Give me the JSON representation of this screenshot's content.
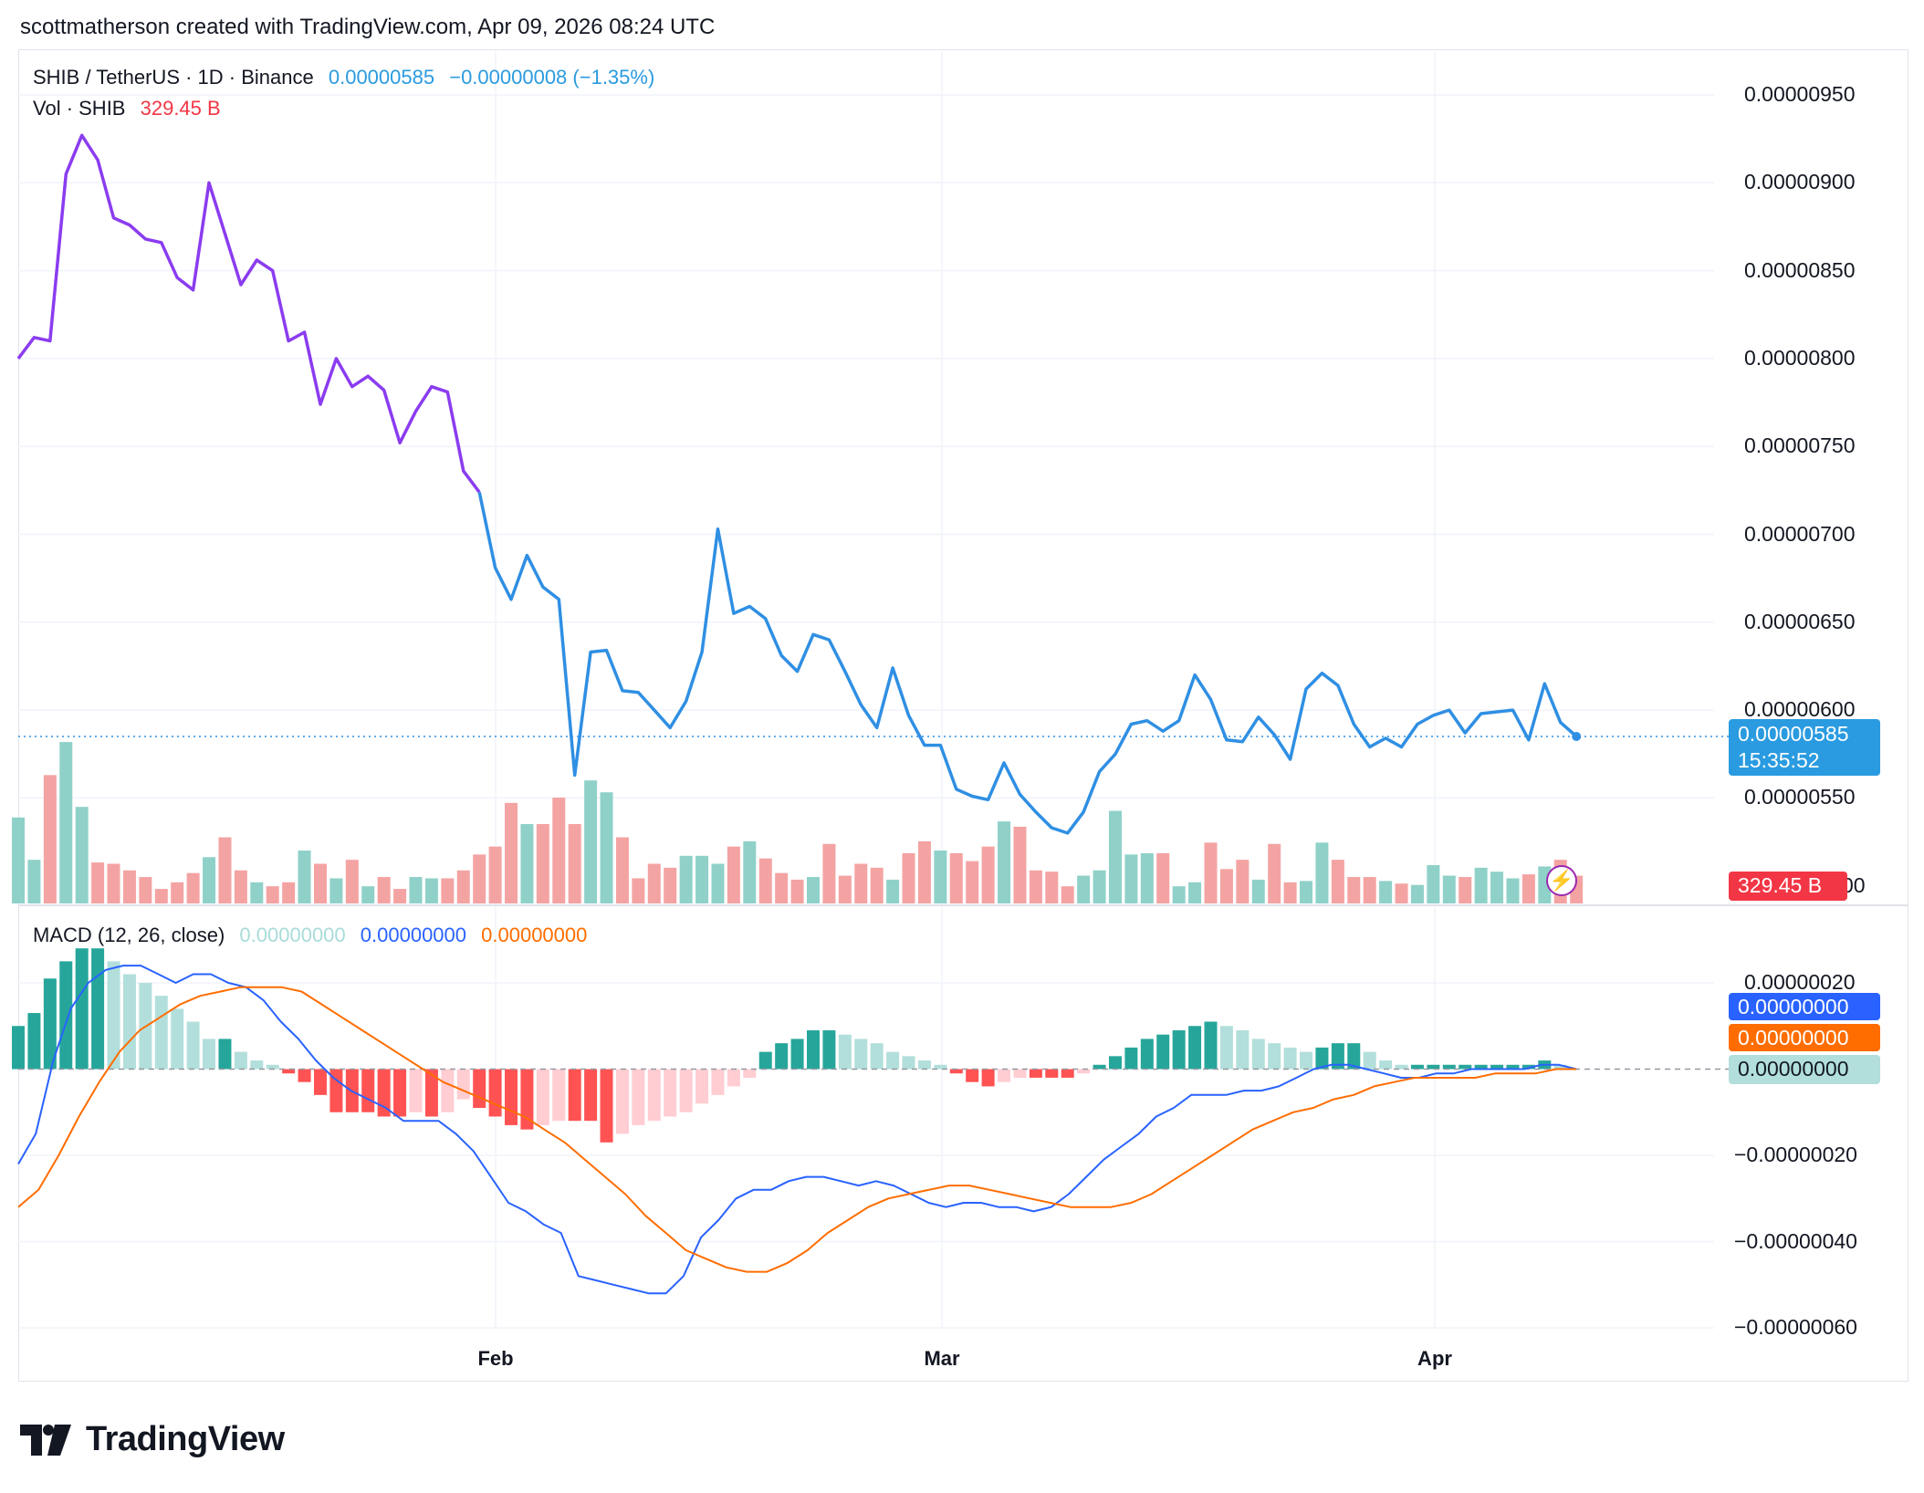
{
  "header": "scottmatherson created with TradingView.com, Apr 09, 2026 08:24 UTC",
  "legend": {
    "symbol": "SHIB / TetherUS · 1D · Binance",
    "price": "0.00000585",
    "change": "−0.00000008 (−1.35%)",
    "vol_label": "Vol · SHIB",
    "vol_value": "329.45 B",
    "macd_label": "MACD (12, 26, close)",
    "macd_hist": "0.00000000",
    "macd_line": "0.00000000",
    "macd_signal": "0.00000000"
  },
  "price_tag": {
    "value": "0.00000585",
    "countdown": "15:35:52"
  },
  "volume_tag": "329.45 B",
  "price_axis_labels": [
    "0.00000950",
    "0.00000900",
    "0.00000850",
    "0.00000800",
    "0.00000750",
    "0.00000700",
    "0.00000650",
    "0.00000600",
    "0.00000550",
    "00"
  ],
  "macd_axis_labels": [
    "0.00000020",
    "−0.00000020",
    "−0.00000040",
    "−0.00000060"
  ],
  "macd_tags": [
    "0.00000000",
    "0.00000000",
    "0.00000000"
  ],
  "x_labels": [
    "Feb",
    "Mar",
    "Apr"
  ],
  "brand": "TradingView",
  "colors": {
    "price_line_early": "#8b3cf0",
    "price_line": "#2f8fe3",
    "vol_up": "#8fd1c9",
    "vol_down": "#f4a3a3",
    "hist_up_strong": "#26a69a",
    "hist_up_weak": "#b2dfdb",
    "hist_down_strong": "#ff5252",
    "hist_down_weak": "#ffcdd2",
    "macd_line": "#2962ff",
    "signal_line": "#ff6d00",
    "price_tag_bg": "#2a9be0",
    "vol_tag_bg": "#f23645"
  },
  "chart_data": [
    {
      "type": "line",
      "title": "SHIB / TetherUS · 1D · Binance",
      "x_range": [
        "2026-01-02",
        "2026-04-09"
      ],
      "y_range": [
        5.35e-06,
        9.6e-06
      ],
      "series": [
        {
          "values": [
            8e-06,
            8.12e-06,
            8.1e-06,
            9.05e-06,
            9.27e-06,
            9.13e-06,
            8.8e-06,
            8.76e-06,
            8.68e-06,
            8.66e-06,
            8.46e-06,
            8.39e-06,
            9e-06,
            8.71e-06,
            8.42e-06,
            8.56e-06,
            8.5e-06,
            8.1e-06,
            8.15e-06,
            7.74e-06,
            8e-06,
            7.84e-06,
            7.9e-06,
            7.82e-06,
            7.52e-06,
            7.7e-06,
            7.84e-06,
            7.81e-06,
            7.36e-06,
            7.24e-06,
            6.81e-06,
            6.63e-06,
            6.88e-06,
            6.7e-06,
            6.63e-06,
            5.63e-06,
            6.33e-06,
            6.34e-06,
            6.11e-06,
            6.1e-06,
            6e-06,
            5.9e-06,
            6.05e-06,
            6.33e-06,
            7.03e-06,
            6.55e-06,
            6.59e-06,
            6.52e-06,
            6.31e-06,
            6.22e-06,
            6.43e-06,
            6.4e-06,
            6.22e-06,
            6.03e-06,
            5.9e-06,
            6.24e-06,
            5.97e-06,
            5.8e-06,
            5.8e-06,
            5.55e-06,
            5.51e-06,
            5.49e-06,
            5.7e-06,
            5.52e-06,
            5.42e-06,
            5.33e-06,
            5.3e-06,
            5.42e-06,
            5.65e-06,
            5.75e-06,
            5.92e-06,
            5.94e-06,
            5.88e-06,
            5.94e-06,
            6.2e-06,
            6.06e-06,
            5.83e-06,
            5.82e-06,
            5.96e-06,
            5.86e-06,
            5.72e-06,
            6.12e-06,
            6.21e-06,
            6.14e-06,
            5.92e-06,
            5.79e-06,
            5.84e-06,
            5.79e-06,
            5.92e-06,
            5.97e-06,
            6e-06,
            5.87e-06,
            5.98e-06,
            5.99e-06,
            6e-06,
            5.83e-06,
            6.15e-06,
            5.93e-06,
            5.85e-06
          ]
        }
      ],
      "last_value": 5.85e-06
    },
    {
      "type": "bar",
      "title": "Vol · SHIB",
      "series": [
        {
          "name": "Vol · SHIB",
          "values": [
            0.65,
            0.33,
            0.97,
            1.22,
            0.73,
            0.31,
            0.3,
            0.25,
            0.2,
            0.11,
            0.16,
            0.23,
            0.35,
            0.5,
            0.25,
            0.16,
            0.13,
            0.16,
            0.4,
            0.3,
            0.19,
            0.33,
            0.13,
            0.2,
            0.11,
            0.2,
            0.19,
            0.19,
            0.25,
            0.37,
            0.43,
            0.76,
            0.6,
            0.6,
            0.8,
            0.6,
            0.93,
            0.84,
            0.5,
            0.19,
            0.3,
            0.27,
            0.36,
            0.36,
            0.3,
            0.43,
            0.47,
            0.34,
            0.23,
            0.18,
            0.2,
            0.45,
            0.21,
            0.3,
            0.27,
            0.18,
            0.38,
            0.47,
            0.4,
            0.38,
            0.32,
            0.43,
            0.62,
            0.58,
            0.25,
            0.24,
            0.13,
            0.21,
            0.25,
            0.7,
            0.37,
            0.38,
            0.38,
            0.13,
            0.16,
            0.46,
            0.26,
            0.33,
            0.18,
            0.45,
            0.16,
            0.17,
            0.46,
            0.33,
            0.2,
            0.2,
            0.17,
            0.15,
            0.14,
            0.29,
            0.21,
            0.2,
            0.27,
            0.24,
            0.19,
            0.22,
            0.28,
            0.33,
            0.21
          ]
        }
      ],
      "y_range": [
        0,
        1.3
      ]
    },
    {
      "type": "line",
      "title": "MACD (12, 26, close)",
      "y_range": [
        -6.1e-07,
        2.7e-07
      ],
      "series": [
        {
          "name": "MACD",
          "values": [
            -2.2e-07,
            -1.5e-07,
            2e-08,
            1.4e-07,
            2e-07,
            2.3e-07,
            2.4e-07,
            2.4e-07,
            2.2e-07,
            2e-07,
            2.2e-07,
            2.2e-07,
            2e-07,
            1.9e-07,
            1.6e-07,
            1.1e-07,
            7e-08,
            2e-08,
            -2e-08,
            -5e-08,
            -7e-08,
            -9e-08,
            -1.2e-07,
            -1.2e-07,
            -1.2e-07,
            -1.5e-07,
            -1.9e-07,
            -2.5e-07,
            -3.1e-07,
            -3.3e-07,
            -3.6e-07,
            -3.8e-07,
            -4.8e-07,
            -4.9e-07,
            -5e-07,
            -5.1e-07,
            -5.2e-07,
            -5.2e-07,
            -4.8e-07,
            -3.9e-07,
            -3.5e-07,
            -3e-07,
            -2.8e-07,
            -2.8e-07,
            -2.6e-07,
            -2.5e-07,
            -2.5e-07,
            -2.6e-07,
            -2.7e-07,
            -2.6e-07,
            -2.7e-07,
            -2.9e-07,
            -3.1e-07,
            -3.2e-07,
            -3.1e-07,
            -3.1e-07,
            -3.2e-07,
            -3.2e-07,
            -3.3e-07,
            -3.2e-07,
            -2.9e-07,
            -2.5e-07,
            -2.1e-07,
            -1.8e-07,
            -1.5e-07,
            -1.1e-07,
            -9e-08,
            -6e-08,
            -6e-08,
            -6e-08,
            -5e-08,
            -5e-08,
            -4e-08,
            -2e-08,
            0.0,
            1e-08,
            1e-08,
            0.0,
            -1e-08,
            -2e-08,
            -2e-08,
            -1e-08,
            -1e-08,
            0.0,
            0.0,
            0.0,
            0.0,
            1e-08,
            1e-08,
            0.0
          ]
        },
        {
          "name": "Signal",
          "values": [
            -3.2e-07,
            -2.8e-07,
            -2e-07,
            -1.1e-07,
            -3e-08,
            4e-08,
            9e-08,
            1.2e-07,
            1.5e-07,
            1.7e-07,
            1.8e-07,
            1.9e-07,
            1.9e-07,
            1.9e-07,
            1.8e-07,
            1.5e-07,
            1.2e-07,
            9e-08,
            6e-08,
            3e-08,
            0.0,
            -3e-08,
            -5e-08,
            -7e-08,
            -9e-08,
            -1.1e-07,
            -1.4e-07,
            -1.7e-07,
            -2.1e-07,
            -2.5e-07,
            -2.9e-07,
            -3.4e-07,
            -3.8e-07,
            -4.2e-07,
            -4.4e-07,
            -4.6e-07,
            -4.7e-07,
            -4.7e-07,
            -4.5e-07,
            -4.2e-07,
            -3.8e-07,
            -3.5e-07,
            -3.2e-07,
            -3e-07,
            -2.9e-07,
            -2.8e-07,
            -2.7e-07,
            -2.7e-07,
            -2.8e-07,
            -2.9e-07,
            -3e-07,
            -3.1e-07,
            -3.2e-07,
            -3.2e-07,
            -3.2e-07,
            -3.1e-07,
            -2.9e-07,
            -2.6e-07,
            -2.3e-07,
            -2e-07,
            -1.7e-07,
            -1.4e-07,
            -1.2e-07,
            -1e-07,
            -9e-08,
            -7e-08,
            -6e-08,
            -4e-08,
            -3e-08,
            -2e-08,
            -2e-08,
            -2e-08,
            -2e-08,
            -1e-08,
            -1e-08,
            -1e-08,
            0.0,
            0.0
          ]
        }
      ],
      "histogram": [
        1e-07,
        1.3e-07,
        2.1e-07,
        2.5e-07,
        2.8e-07,
        2.8e-07,
        2.5e-07,
        2.2e-07,
        2e-07,
        1.7e-07,
        1.4e-07,
        1.1e-07,
        7e-08,
        7e-08,
        4e-08,
        2e-08,
        1e-08,
        -1e-08,
        -3e-08,
        -6e-08,
        -1e-07,
        -1e-07,
        -1e-07,
        -1.1e-07,
        -1.1e-07,
        -1e-07,
        -1.1e-07,
        -1e-07,
        -7e-08,
        -9e-08,
        -1.1e-07,
        -1.3e-07,
        -1.4e-07,
        -1.3e-07,
        -1.2e-07,
        -1.2e-07,
        -1.2e-07,
        -1.7e-07,
        -1.5e-07,
        -1.3e-07,
        -1.2e-07,
        -1.1e-07,
        -1e-07,
        -8e-08,
        -6e-08,
        -4e-08,
        -2e-08,
        4e-08,
        6e-08,
        7e-08,
        9e-08,
        9e-08,
        8e-08,
        7e-08,
        6e-08,
        4e-08,
        3e-08,
        2e-08,
        1e-08,
        -1e-08,
        -3e-08,
        -4e-08,
        -3e-08,
        -2e-08,
        -2e-08,
        -2e-08,
        -2e-08,
        -1e-08,
        1e-08,
        3e-08,
        5e-08,
        7e-08,
        8e-08,
        9e-08,
        1e-07,
        1.1e-07,
        1e-07,
        9e-08,
        7e-08,
        6e-08,
        5e-08,
        4e-08,
        5e-08,
        6e-08,
        6e-08,
        4e-08,
        2e-08,
        1e-08,
        1e-08,
        1e-08,
        1e-08,
        1e-08,
        1e-08,
        1e-08,
        1e-08,
        1e-08,
        2e-08,
        1e-08
      ]
    }
  ]
}
